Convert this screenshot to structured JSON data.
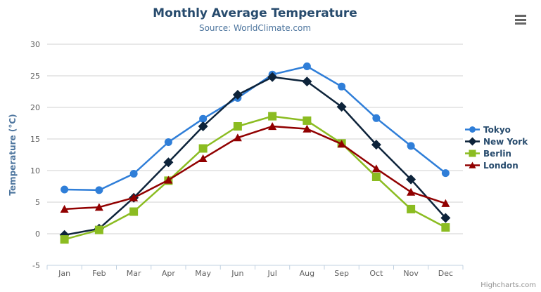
{
  "chart": {
    "credits": "Highcharts.com",
    "export_icon": "hamburger-menu-icon",
    "style_colors": {
      "title": "#274b6d",
      "subtitle": "#4d759e",
      "axis_labels": "#606060",
      "axis_title": "#4d759e",
      "gridline": "#d0d0d0",
      "xaxis_line": "#c0d0e0",
      "legend_text": "#274b6d",
      "credits_text": "#909090",
      "export_icon": "#666666"
    }
  },
  "chart_data": {
    "type": "line",
    "title": "Monthly Average Temperature",
    "subtitle": "Source: WorldClimate.com",
    "categories": [
      "Jan",
      "Feb",
      "Mar",
      "Apr",
      "May",
      "Jun",
      "Jul",
      "Aug",
      "Sep",
      "Oct",
      "Nov",
      "Dec"
    ],
    "series": [
      {
        "name": "Tokyo",
        "color": "#2f7ed8",
        "marker": "circle",
        "values": [
          7.0,
          6.9,
          9.5,
          14.5,
          18.2,
          21.5,
          25.2,
          26.5,
          23.3,
          18.3,
          13.9,
          9.6
        ]
      },
      {
        "name": "New York",
        "color": "#0d233a",
        "marker": "diamond",
        "values": [
          -0.2,
          0.8,
          5.7,
          11.3,
          17.0,
          22.0,
          24.8,
          24.1,
          20.1,
          14.1,
          8.6,
          2.5
        ]
      },
      {
        "name": "Berlin",
        "color": "#8bbc21",
        "marker": "square",
        "values": [
          -0.9,
          0.6,
          3.5,
          8.4,
          13.5,
          17.0,
          18.6,
          17.9,
          14.3,
          9.0,
          3.9,
          1.0
        ]
      },
      {
        "name": "London",
        "color": "#910000",
        "marker": "triangle",
        "values": [
          3.9,
          4.2,
          5.7,
          8.5,
          11.9,
          15.2,
          17.0,
          16.6,
          14.2,
          10.3,
          6.6,
          4.8
        ]
      }
    ],
    "xlabel": "",
    "ylabel": "Temperature (°C)",
    "ylim": [
      -5,
      30
    ],
    "ytick_step": 5,
    "grid": true,
    "legend_position": "right"
  }
}
